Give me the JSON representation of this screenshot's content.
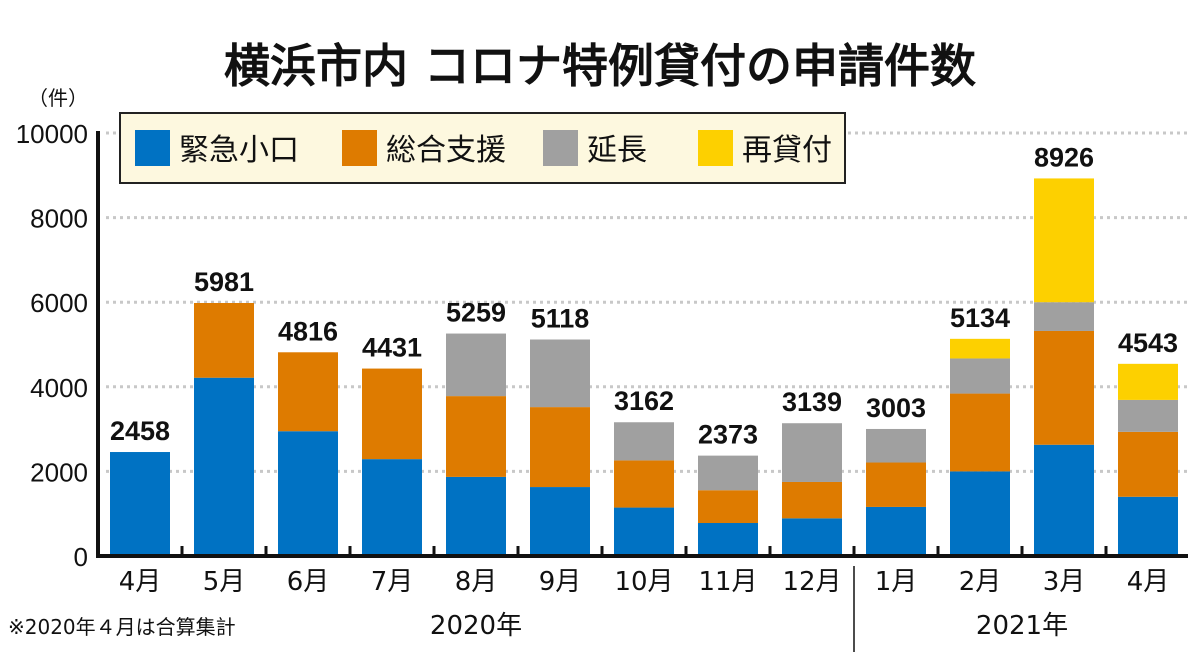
{
  "chart_data": {
    "type": "bar",
    "stacked": true,
    "title": "横浜市内 コロナ特例貸付の申請件数",
    "ylabel": "（件）",
    "ylim": [
      0,
      10000
    ],
    "yticks": [
      0,
      2000,
      4000,
      6000,
      8000,
      10000
    ],
    "grid": true,
    "legend_position": "top-left",
    "categories": [
      "4月",
      "5月",
      "6月",
      "7月",
      "8月",
      "9月",
      "10月",
      "11月",
      "12月",
      "1月",
      "2月",
      "3月",
      "4月"
    ],
    "year_groups": [
      {
        "label": "2020年",
        "count": 9
      },
      {
        "label": "2021年",
        "count": 4
      }
    ],
    "totals": [
      2458,
      5981,
      4816,
      4431,
      5259,
      5118,
      3162,
      2373,
      3139,
      3003,
      5134,
      8926,
      4543
    ],
    "series": [
      {
        "name": "緊急小口",
        "color": "#0072c3",
        "values": [
          2458,
          4215,
          2950,
          2290,
          1870,
          1630,
          1145,
          780,
          890,
          1160,
          2000,
          2630,
          1400
        ]
      },
      {
        "name": "総合支援",
        "color": "#de7b00",
        "values": [
          0,
          1766,
          1866,
          2141,
          1910,
          1890,
          1115,
          775,
          860,
          1050,
          1840,
          2690,
          1535
        ]
      },
      {
        "name": "延長",
        "color": "#a0a0a0",
        "values": [
          0,
          0,
          0,
          0,
          1479,
          1598,
          902,
          818,
          1389,
          793,
          830,
          680,
          755
        ]
      },
      {
        "name": "再貸付",
        "color": "#fdd000",
        "values": [
          0,
          0,
          0,
          0,
          0,
          0,
          0,
          0,
          0,
          0,
          464,
          2926,
          853
        ]
      }
    ],
    "footnote": "※2020年４月は合算集計"
  }
}
